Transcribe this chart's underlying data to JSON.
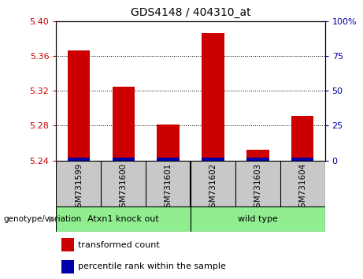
{
  "title": "GDS4148 / 404310_at",
  "samples": [
    "GSM731599",
    "GSM731600",
    "GSM731601",
    "GSM731602",
    "GSM731603",
    "GSM731604"
  ],
  "red_values": [
    5.366,
    5.325,
    5.281,
    5.386,
    5.252,
    5.291
  ],
  "ylim_left": [
    5.24,
    5.4
  ],
  "ylim_right": [
    0,
    100
  ],
  "yticks_left": [
    5.24,
    5.28,
    5.32,
    5.36,
    5.4
  ],
  "yticks_right": [
    0,
    25,
    50,
    75,
    100
  ],
  "bar_width": 0.5,
  "red_color": "#CC0000",
  "blue_color": "#0000AA",
  "base_value": 5.24,
  "left_tick_color": "#CC0000",
  "right_tick_color": "#0000AA",
  "group1_label": "Atxn1 knock out",
  "group2_label": "wild type",
  "group_color": "#90EE90",
  "sample_box_color": "#C8C8C8",
  "genotype_label": "genotype/variation",
  "legend_red_label": "transformed count",
  "legend_blue_label": "percentile rank within the sample"
}
